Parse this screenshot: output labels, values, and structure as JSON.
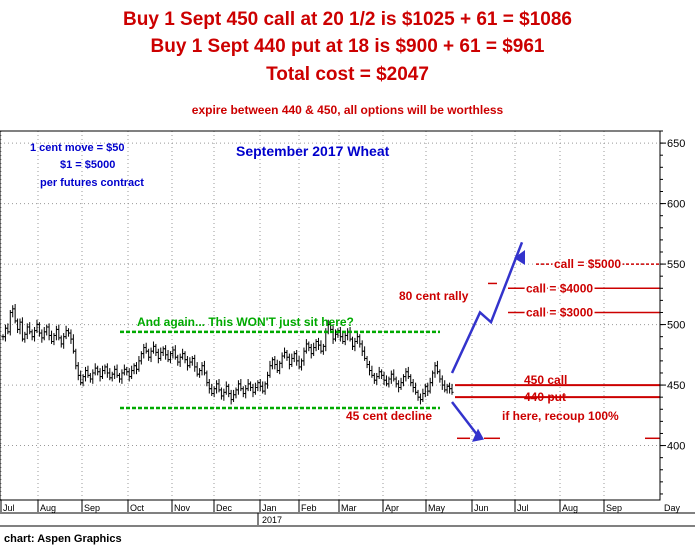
{
  "header": {
    "line1": "Buy 1 Sept 450 call at 20 1/2 is $1025 + 61 = $1086",
    "line2": "Buy 1 Sept 440 put at 18 is $900 + 61 = $961",
    "line3": "Total cost = $2047",
    "line4": "expire between 440 & 450, all options will be worthless"
  },
  "credit": "chart: Aspen Graphics",
  "chart_data": {
    "type": "ohlc",
    "title": "September 2017 Wheat",
    "note_lines": [
      "1 cent move = $50",
      "$1 = $5000",
      "per futures contract"
    ],
    "y_ticks": [
      "650",
      "600",
      "550",
      "500",
      "450",
      "400"
    ],
    "ylim": [
      355,
      660
    ],
    "x_labels": [
      "Jul",
      "Aug",
      "Sep",
      "Oct",
      "Nov",
      "Dec",
      "Jan",
      "Feb",
      "Mar",
      "Apr",
      "May",
      "Jun",
      "Jul",
      "Aug",
      "Sep",
      "Day"
    ],
    "year_label": "2017",
    "grid": true,
    "closes": [
      490,
      497,
      494,
      510,
      513,
      503,
      496,
      502,
      488,
      492,
      498,
      494,
      490,
      495,
      500,
      493,
      489,
      494,
      498,
      491,
      486,
      491,
      496,
      489,
      484,
      490,
      495,
      493,
      488,
      478,
      466,
      458,
      452,
      457,
      462,
      458,
      455,
      460,
      464,
      461,
      457,
      462,
      465,
      460,
      456,
      459,
      463,
      458,
      455,
      460,
      463,
      461,
      457,
      462,
      466,
      463,
      470,
      476,
      481,
      478,
      473,
      478,
      482,
      477,
      472,
      477,
      480,
      475,
      471,
      476,
      479,
      473,
      469,
      473,
      476,
      471,
      466,
      469,
      472,
      465,
      459,
      462,
      466,
      460,
      452,
      447,
      443,
      447,
      451,
      446,
      441,
      444,
      449,
      443,
      438,
      442,
      446,
      451,
      447,
      443,
      447,
      451,
      448,
      444,
      448,
      452,
      449,
      445,
      451,
      458,
      466,
      471,
      467,
      462,
      468,
      474,
      477,
      473,
      467,
      472,
      476,
      470,
      465,
      470,
      478,
      484,
      481,
      476,
      481,
      486,
      483,
      478,
      482,
      494,
      500,
      496,
      488,
      492,
      495,
      490,
      486,
      491,
      494,
      488,
      482,
      486,
      490,
      484,
      478,
      472,
      467,
      462,
      458,
      454,
      457,
      461,
      458,
      454,
      451,
      455,
      459,
      455,
      451,
      448,
      452,
      457,
      461,
      457,
      452,
      448,
      444,
      440,
      438,
      443,
      449,
      445,
      452,
      460,
      466,
      461,
      455,
      450,
      446,
      449,
      447,
      444
    ],
    "trading_range": {
      "top": 494,
      "bottom": 431
    },
    "option_strikes": [
      {
        "label": "450 call",
        "value": 450
      },
      {
        "label": "440 put",
        "value": 440
      }
    ],
    "call_values": [
      {
        "label": "call = $5000",
        "value": 550
      },
      {
        "label": "call = $4000",
        "value": 530
      },
      {
        "label": "call = $3000",
        "value": 510
      }
    ],
    "projection_up": [
      [
        458,
        460
      ],
      [
        490,
        510
      ],
      [
        495,
        502
      ],
      [
        525,
        568
      ]
    ],
    "projection_down": [
      [
        455,
        436
      ],
      [
        480,
        407
      ]
    ],
    "annotations": {
      "range_note": "And again... This WON'T just sit here?",
      "rally": "80 cent rally",
      "decline": "45 cent decline",
      "recoup": "if here, recoup 100%"
    }
  },
  "colors": {
    "headline": "#cc0000",
    "title": "#0000cc",
    "range_lines": "#00aa00",
    "price_bars": "#000000",
    "arrows": "#3333cc",
    "grid": "#999999"
  }
}
